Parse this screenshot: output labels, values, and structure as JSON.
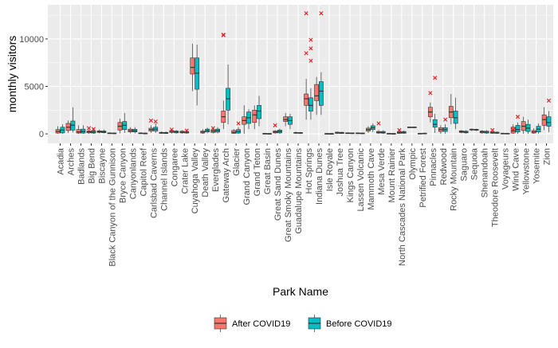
{
  "chart_data": {
    "type": "boxplot",
    "xlabel": "Park Name",
    "ylabel": "monthly visitors",
    "y_ticks": [
      0,
      5000,
      10000
    ],
    "y_tick_labels": [
      "0",
      "5000",
      "10000"
    ],
    "ylim": [
      -1000,
      13600
    ],
    "grid": true,
    "legend_position": "bottom",
    "series": [
      {
        "name": "After COVID19",
        "color": "#F8766D"
      },
      {
        "name": "Before COVID19",
        "color": "#00BFC4"
      }
    ],
    "categories": [
      "Acadia",
      "Arches",
      "Badlands",
      "Big Bend",
      "Biscayne",
      "Black Canyon of the Gunnison",
      "Bryce Canyon",
      "Canyonlands",
      "Capitol Reef",
      "Carlsbad Caverns",
      "Channel Islands",
      "Congaree",
      "Crater Lake",
      "Cuyahoga Valley",
      "Death Valley",
      "Everglades",
      "Gateway Arch",
      "Glacier",
      "Grand Canyon",
      "Grand Teton",
      "Great Basin",
      "Great Sand Dunes",
      "Great Smoky Mountains",
      "Guadalupe Mountains",
      "Hot Springs",
      "Indiana Dunes",
      "Isle Royale",
      "Joshua Tree",
      "Kings Canyon",
      "Lassen Volcanic",
      "Mammoth Cave",
      "Mesa Verde",
      "Mount Rainier",
      "North Cascades National Park",
      "Olympic",
      "Petrified Forest",
      "Pinnacles",
      "Redwood",
      "Rocky Mountain",
      "Saguaro",
      "Sequoia",
      "Shenandoah",
      "Theodore Roosevelt",
      "Voyageurs",
      "Wind Cave",
      "Yellowstone",
      "Yosemite",
      "Zion"
    ],
    "boxes": [
      {
        "park": "Acadia",
        "after": [
          0,
          80,
          250,
          450,
          800
        ],
        "before": [
          0,
          100,
          400,
          700,
          1000
        ]
      },
      {
        "park": "Arches",
        "after": [
          100,
          350,
          700,
          1100,
          1400
        ],
        "before": [
          150,
          400,
          900,
          1350,
          2800
        ]
      },
      {
        "park": "Badlands",
        "after": [
          0,
          80,
          200,
          450,
          900
        ],
        "before": [
          0,
          80,
          250,
          500,
          900
        ]
      },
      {
        "park": "Big Bend",
        "after": [
          0,
          100,
          200,
          300,
          450
        ],
        "before": [
          0,
          80,
          180,
          300,
          450
        ]
      },
      {
        "park": "Biscayne",
        "after": [
          50,
          150,
          220,
          320,
          450
        ],
        "before": [
          50,
          120,
          200,
          300,
          450
        ]
      },
      {
        "park": "Black Canyon of the Gunnison",
        "after": [
          0,
          30,
          60,
          100,
          150
        ],
        "before": [
          0,
          20,
          50,
          90,
          150
        ]
      },
      {
        "park": "Bryce Canyon",
        "after": [
          50,
          400,
          800,
          1200,
          1600
        ],
        "before": [
          100,
          450,
          900,
          1300,
          2200
        ]
      },
      {
        "park": "Canyonlands",
        "after": [
          50,
          200,
          350,
          500,
          700
        ],
        "before": [
          50,
          200,
          330,
          480,
          700
        ]
      },
      {
        "park": "Capitol Reef",
        "after": [
          0,
          30,
          60,
          100,
          150
        ],
        "before": [
          0,
          20,
          50,
          80,
          150
        ]
      },
      {
        "park": "Carlsbad Caverns",
        "after": [
          100,
          300,
          450,
          600,
          900
        ],
        "before": [
          100,
          300,
          500,
          700,
          1100
        ]
      },
      {
        "park": "Channel Islands",
        "after": [
          0,
          50,
          100,
          160,
          250
        ],
        "before": [
          0,
          40,
          90,
          150,
          250
        ]
      },
      {
        "park": "Congaree",
        "after": [
          30,
          150,
          250,
          350,
          450
        ],
        "before": [
          20,
          100,
          200,
          300,
          400
        ]
      },
      {
        "park": "Crater Lake",
        "after": [
          20,
          100,
          180,
          280,
          380
        ],
        "before": [
          20,
          80,
          160,
          250,
          350
        ]
      },
      {
        "park": "Cuyahoga Valley",
        "after": [
          4500,
          6300,
          7000,
          8000,
          9500
        ],
        "before": [
          3000,
          4700,
          6400,
          8000,
          9400
        ]
      },
      {
        "park": "Death Valley",
        "after": [
          0,
          80,
          180,
          300,
          500
        ],
        "before": [
          50,
          200,
          350,
          500,
          650
        ]
      },
      {
        "park": "Everglades",
        "after": [
          50,
          150,
          280,
          420,
          550
        ],
        "before": [
          50,
          180,
          350,
          500,
          700
        ]
      },
      {
        "park": "Gateway Arch",
        "after": [
          500,
          1200,
          1800,
          2400,
          3500
        ],
        "before": [
          1000,
          2500,
          3700,
          4800,
          7300
        ]
      },
      {
        "park": "Glacier",
        "after": [
          0,
          50,
          150,
          350,
          500
        ],
        "before": [
          0,
          80,
          250,
          450,
          700
        ]
      },
      {
        "park": "Grand Canyon",
        "after": [
          0,
          1000,
          1400,
          1800,
          3000
        ],
        "before": [
          500,
          1100,
          1700,
          2300,
          2600
        ]
      },
      {
        "park": "Grand Teton",
        "after": [
          500,
          1200,
          2000,
          2500,
          3000
        ],
        "before": [
          800,
          1600,
          2400,
          3000,
          4000
        ]
      },
      {
        "park": "Great Basin",
        "after": [
          0,
          10,
          30,
          50,
          80
        ],
        "before": [
          0,
          10,
          20,
          40,
          60
        ]
      },
      {
        "park": "Great Sand Dunes",
        "after": [
          0,
          100,
          200,
          300,
          400
        ],
        "before": [
          0,
          100,
          250,
          400,
          550
        ]
      },
      {
        "park": "Great Smoky Mountains",
        "after": [
          800,
          1300,
          1500,
          1800,
          2200
        ],
        "before": [
          500,
          1000,
          1400,
          1800,
          2100
        ]
      },
      {
        "park": "Guadalupe Mountains",
        "after": [
          0,
          60,
          100,
          150,
          220
        ],
        "before": [
          0,
          50,
          90,
          140,
          200
        ]
      },
      {
        "park": "Hot Springs",
        "after": [
          1500,
          3000,
          3700,
          4200,
          5800
        ],
        "before": [
          1500,
          2400,
          3000,
          3800,
          4800
        ]
      },
      {
        "park": "Indiana Dunes",
        "after": [
          2000,
          3500,
          4000,
          5200,
          6000
        ],
        "before": [
          2000,
          3000,
          4500,
          5500,
          6500
        ]
      },
      {
        "park": "Isle Royale",
        "after": [
          0,
          10,
          20,
          40,
          60
        ],
        "before": [
          0,
          10,
          20,
          35,
          60
        ]
      },
      {
        "park": "Joshua Tree",
        "after": [
          0,
          50,
          110,
          180,
          250
        ],
        "before": [
          0,
          40,
          100,
          160,
          230
        ]
      },
      {
        "park": "Kings Canyon",
        "after": [
          0,
          30,
          70,
          110,
          160
        ],
        "before": [
          0,
          20,
          60,
          100,
          150
        ]
      },
      {
        "park": "Lassen Volcanic",
        "after": [
          0,
          30,
          60,
          100,
          150
        ],
        "before": [
          0,
          20,
          50,
          90,
          140
        ]
      },
      {
        "park": "Mammoth Cave",
        "after": [
          100,
          300,
          450,
          600,
          800
        ],
        "before": [
          200,
          450,
          650,
          850,
          1100
        ]
      },
      {
        "park": "Mesa Verde",
        "after": [
          0,
          80,
          150,
          250,
          400
        ],
        "before": [
          0,
          70,
          150,
          250,
          380
        ]
      },
      {
        "park": "Mount Rainier",
        "after": [
          0,
          10,
          30,
          50,
          80
        ],
        "before": [
          0,
          10,
          20,
          40,
          70
        ]
      },
      {
        "park": "North Cascades National Park",
        "after": [
          0,
          50,
          120,
          200,
          300
        ],
        "before": [
          0,
          60,
          150,
          250,
          350
        ]
      },
      {
        "park": "Olympic",
        "after": [
          650,
          680,
          700,
          720,
          750
        ],
        "before": [
          650,
          680,
          700,
          720,
          750
        ]
      },
      {
        "park": "Petrified Forest",
        "after": [
          0,
          10,
          30,
          60,
          100
        ],
        "before": [
          0,
          20,
          40,
          80,
          120
        ]
      },
      {
        "park": "Pinnacles",
        "after": [
          1200,
          1800,
          2300,
          2800,
          3300
        ],
        "before": [
          100,
          700,
          1000,
          1500,
          2100
        ]
      },
      {
        "park": "Redwood",
        "after": [
          0,
          250,
          450,
          650,
          900
        ],
        "before": [
          0,
          250,
          450,
          650,
          1000
        ]
      },
      {
        "park": "Rocky Mountain",
        "after": [
          1000,
          1700,
          2300,
          2900,
          4200
        ],
        "before": [
          500,
          1100,
          1700,
          2400,
          3800
        ]
      },
      {
        "park": "Saguaro",
        "after": [
          50,
          150,
          230,
          320,
          400
        ],
        "before": [
          30,
          100,
          180,
          280,
          380
        ]
      },
      {
        "park": "Sequoia",
        "after": [
          300,
          400,
          450,
          500,
          550
        ],
        "before": [
          300,
          380,
          430,
          480,
          530
        ]
      },
      {
        "park": "Shenandoah",
        "after": [
          0,
          100,
          200,
          300,
          400
        ],
        "before": [
          0,
          80,
          180,
          280,
          380
        ]
      },
      {
        "park": "Theodore Roosevelt",
        "after": [
          0,
          60,
          120,
          200,
          280
        ],
        "before": [
          0,
          50,
          110,
          180,
          260
        ]
      },
      {
        "park": "Voyageurs",
        "after": [
          0,
          20,
          40,
          70,
          120
        ],
        "before": [
          0,
          20,
          40,
          60,
          100
        ]
      },
      {
        "park": "Wind Cave",
        "after": [
          0,
          80,
          300,
          700,
          1000
        ],
        "before": [
          0,
          200,
          450,
          900,
          1200
        ]
      },
      {
        "park": "Yellowstone",
        "after": [
          0,
          350,
          800,
          1300,
          1800
        ],
        "before": [
          0,
          250,
          600,
          1000,
          1500
        ]
      },
      {
        "park": "Yosemite",
        "after": [
          0,
          80,
          200,
          350,
          600
        ],
        "before": [
          0,
          200,
          500,
          800,
          1100
        ]
      },
      {
        "park": "Zion",
        "after": [
          400,
          900,
          1500,
          2000,
          2800
        ],
        "before": [
          200,
          800,
          1200,
          1800,
          2400
        ]
      }
    ],
    "outliers_after": [
      {
        "park": "Big Bend",
        "y": 600
      },
      {
        "park": "Carlsbad Caverns",
        "y": 1400
      },
      {
        "park": "Congaree",
        "y": 450
      },
      {
        "park": "Everglades",
        "y": 600
      },
      {
        "park": "Gateway Arch",
        "y": 10400
      },
      {
        "park": "Gateway Arch",
        "y": 10450
      },
      {
        "park": "Great Sand Dunes",
        "y": 900
      },
      {
        "park": "Hot Springs",
        "y": 8500
      },
      {
        "park": "Hot Springs",
        "y": 12700
      },
      {
        "park": "Mesa Verde",
        "y": 1100
      },
      {
        "park": "North Cascades National Park",
        "y": 400
      },
      {
        "park": "Pinnacles",
        "y": 4300
      },
      {
        "park": "Theodore Roosevelt",
        "y": 400
      },
      {
        "park": "Wind Cave",
        "y": 450
      }
    ],
    "outliers_before": [
      {
        "park": "Big Bend",
        "y": 500
      },
      {
        "park": "Carlsbad Caverns",
        "y": 1300
      },
      {
        "park": "Crater Lake",
        "y": 350
      },
      {
        "park": "Glacier",
        "y": 1100
      },
      {
        "park": "Hot Springs",
        "y": 9000
      },
      {
        "park": "Hot Springs",
        "y": 9900
      },
      {
        "park": "Hot Springs",
        "y": 7700
      },
      {
        "park": "Indiana Dunes",
        "y": 12700
      },
      {
        "park": "Pinnacles",
        "y": 5900
      },
      {
        "park": "Redwood",
        "y": 1500
      },
      {
        "park": "Wind Cave",
        "y": 1800
      },
      {
        "park": "Zion",
        "y": 3500
      }
    ]
  }
}
